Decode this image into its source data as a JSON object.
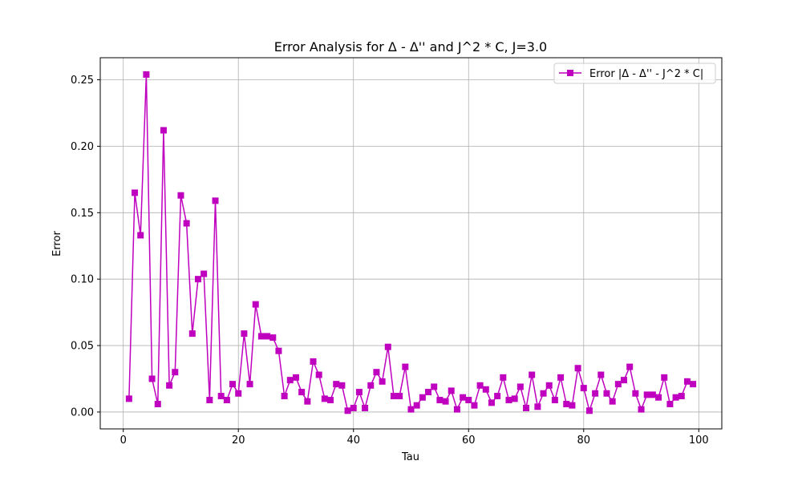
{
  "chart_data": {
    "type": "line",
    "title": "Error Analysis for Δ - Δ'' and J^2 * C, J=3.0",
    "xlabel": "Tau",
    "ylabel": "Error",
    "xlim": [
      -4,
      104
    ],
    "ylim": [
      -0.0127,
      0.2666
    ],
    "xticks": [
      0,
      20,
      40,
      60,
      80,
      100
    ],
    "xtick_labels": [
      "0",
      "20",
      "40",
      "60",
      "80",
      "100"
    ],
    "yticks": [
      0.0,
      0.05,
      0.1,
      0.15,
      0.2,
      0.25
    ],
    "ytick_labels": [
      "0.00",
      "0.05",
      "0.10",
      "0.15",
      "0.20",
      "0.25"
    ],
    "grid": true,
    "legend_position": "upper right",
    "series": [
      {
        "name": "Error |Δ - Δ'' - J^2 * C|",
        "color": "#bf00bf",
        "marker": "square",
        "x": [
          1,
          2,
          3,
          4,
          5,
          6,
          7,
          8,
          9,
          10,
          11,
          12,
          13,
          14,
          15,
          16,
          17,
          18,
          19,
          20,
          21,
          22,
          23,
          24,
          25,
          26,
          27,
          28,
          29,
          30,
          31,
          32,
          33,
          34,
          35,
          36,
          37,
          38,
          39,
          40,
          41,
          42,
          43,
          44,
          45,
          46,
          47,
          48,
          49,
          50,
          51,
          52,
          53,
          54,
          55,
          56,
          57,
          58,
          59,
          60,
          61,
          62,
          63,
          64,
          65,
          66,
          67,
          68,
          69,
          70,
          71,
          72,
          73,
          74,
          75,
          76,
          77,
          78,
          79,
          80,
          81,
          82,
          83,
          84,
          85,
          86,
          87,
          88,
          89,
          90,
          91,
          92,
          93,
          94,
          95,
          96,
          97,
          98,
          99
        ],
        "values": [
          0.01,
          0.165,
          0.133,
          0.254,
          0.025,
          0.006,
          0.212,
          0.02,
          0.03,
          0.163,
          0.142,
          0.059,
          0.1,
          0.104,
          0.009,
          0.159,
          0.012,
          0.009,
          0.021,
          0.014,
          0.059,
          0.021,
          0.081,
          0.057,
          0.057,
          0.056,
          0.046,
          0.012,
          0.024,
          0.026,
          0.015,
          0.008,
          0.038,
          0.028,
          0.01,
          0.009,
          0.021,
          0.02,
          0.001,
          0.003,
          0.015,
          0.003,
          0.02,
          0.03,
          0.023,
          0.049,
          0.012,
          0.012,
          0.034,
          0.002,
          0.005,
          0.011,
          0.015,
          0.019,
          0.009,
          0.008,
          0.016,
          0.002,
          0.011,
          0.009,
          0.005,
          0.02,
          0.017,
          0.007,
          0.012,
          0.026,
          0.009,
          0.01,
          0.019,
          0.003,
          0.028,
          0.004,
          0.014,
          0.02,
          0.009,
          0.026,
          0.006,
          0.005,
          0.033,
          0.018,
          0.001,
          0.014,
          0.028,
          0.014,
          0.008,
          0.021,
          0.024,
          0.034,
          0.014,
          0.002,
          0.013,
          0.013,
          0.011,
          0.026,
          0.006,
          0.011,
          0.012,
          0.023,
          0.021
        ]
      }
    ]
  }
}
